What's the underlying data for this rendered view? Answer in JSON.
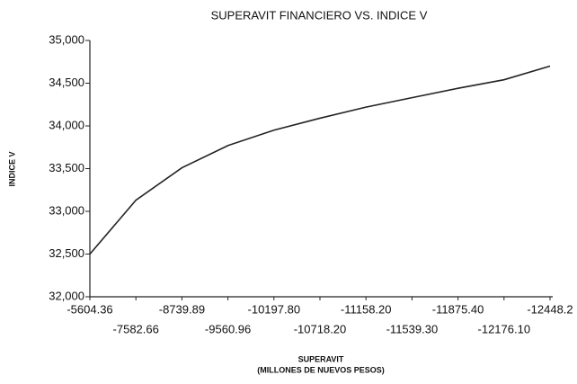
{
  "chart_data": {
    "type": "line",
    "title": "SUPERAVIT FINANCIERO VS. INDICE V",
    "x_label": [
      "SUPERAVIT",
      "(MILLONES DE NUEVOS PESOS)"
    ],
    "y_label": "INDICE V",
    "categories": [
      "-5604.36",
      "-7582.66",
      "-8739.89",
      "-9560.96",
      "-10197.80",
      "-10718.20",
      "-11158.20",
      "-11539.30",
      "-11875.40",
      "-12176.10",
      "-12448.2"
    ],
    "series": [
      {
        "name": "INDICE V",
        "color": "#222222",
        "values": [
          32500,
          33130,
          33510,
          33770,
          33950,
          34090,
          34220,
          34330,
          34440,
          34540,
          34700
        ]
      }
    ],
    "ylim": [
      32000,
      35000
    ],
    "yticks": [
      {
        "value": 32000,
        "label": "32,000"
      },
      {
        "value": 32500,
        "label": "32,500"
      },
      {
        "value": 33000,
        "label": "33,000"
      },
      {
        "value": 33500,
        "label": "33,500"
      },
      {
        "value": 34000,
        "label": "34,000"
      },
      {
        "value": 34500,
        "label": "34,500"
      },
      {
        "value": 35000,
        "label": "35,000"
      }
    ]
  }
}
